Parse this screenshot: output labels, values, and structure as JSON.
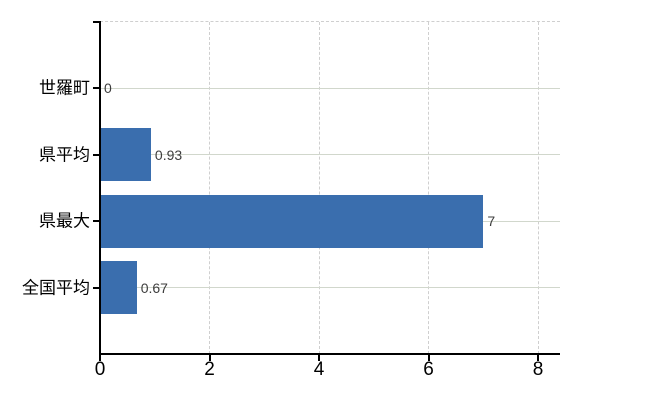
{
  "chart_data": {
    "type": "bar",
    "orientation": "horizontal",
    "title": "",
    "xlabel": "",
    "ylabel": "",
    "categories": [
      "世羅町",
      "県平均",
      "県最大",
      "全国平均"
    ],
    "values": [
      0,
      0.93,
      7,
      0.67
    ],
    "value_labels": [
      "0",
      "0.93",
      "7",
      "0.67"
    ],
    "xlim": [
      0,
      8.4
    ],
    "xticks": [
      0,
      2,
      4,
      6,
      8
    ],
    "xtick_labels": [
      "0",
      "2",
      "4",
      "6",
      "8"
    ],
    "grid": true,
    "legend": false,
    "colors": {
      "bar": "#3a6eae",
      "h_gridline": "#d1d7cc",
      "v_gridline": "#cfcfcf",
      "axis": "#000000",
      "value_label": "#3d3d3d",
      "background": "#ffffff"
    }
  }
}
